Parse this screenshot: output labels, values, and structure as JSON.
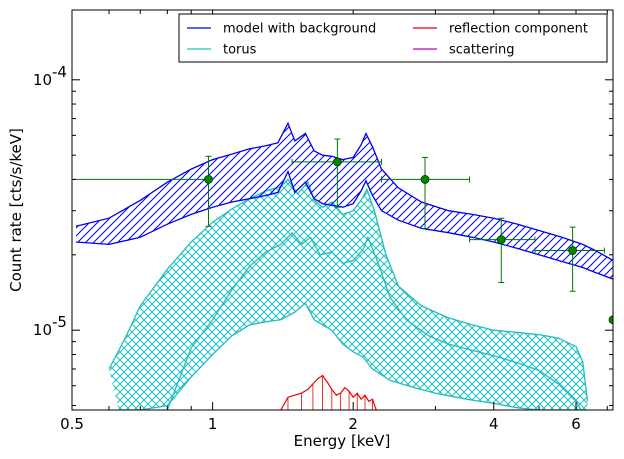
{
  "chart_data": {
    "type": "line",
    "xlabel": "Energy [keV]",
    "ylabel": "Count rate [cts/s/keV]",
    "xscale": "log",
    "yscale": "log",
    "xlim": [
      0.5,
      7.2
    ],
    "ylim": [
      4.8e-06,
      0.00019
    ],
    "x_ticks": [
      {
        "value": 0.5,
        "label": "0.5"
      },
      {
        "value": 1,
        "label": "1"
      },
      {
        "value": 2,
        "label": "2"
      },
      {
        "value": 4,
        "label": "4"
      },
      {
        "value": 6,
        "label": "6"
      }
    ],
    "y_ticks": [
      {
        "value": 1e-05,
        "base": "10",
        "exp": "-5"
      },
      {
        "value": 0.0001,
        "base": "10",
        "exp": "-4"
      }
    ],
    "legend": {
      "placement": "top-right",
      "entries": [
        {
          "name": "model with background",
          "color": "#0000ee"
        },
        {
          "name": "reflection component",
          "color": "#ee0000"
        },
        {
          "name": "torus",
          "color": "#1fbfbf"
        },
        {
          "name": "scattering",
          "color": "#bf00bf"
        }
      ]
    },
    "series": [
      {
        "name": "model with background",
        "color": "#0000ee",
        "upper": [
          [
            0.51,
            2.6e-05
          ],
          [
            0.6,
            2.8e-05
          ],
          [
            0.7,
            3.3e-05
          ],
          [
            0.8,
            3.9e-05
          ],
          [
            0.9,
            4.4e-05
          ],
          [
            1.0,
            4.8e-05
          ],
          [
            1.1,
            5.05e-05
          ],
          [
            1.2,
            5.3e-05
          ],
          [
            1.3,
            5.45e-05
          ],
          [
            1.38,
            5.6e-05
          ],
          [
            1.45,
            6.7e-05
          ],
          [
            1.5,
            5.7e-05
          ],
          [
            1.58,
            6.1e-05
          ],
          [
            1.65,
            5.2e-05
          ],
          [
            1.72,
            5e-05
          ],
          [
            1.8,
            4.95e-05
          ],
          [
            1.9,
            4.8e-05
          ],
          [
            2.0,
            4.9e-05
          ],
          [
            2.08,
            5.5e-05
          ],
          [
            2.13,
            6.1e-05
          ],
          [
            2.2,
            5.4e-05
          ],
          [
            2.3,
            4.4e-05
          ],
          [
            2.5,
            3.7e-05
          ],
          [
            2.8,
            3.25e-05
          ],
          [
            3.2,
            3e-05
          ],
          [
            3.6,
            2.9e-05
          ],
          [
            4.0,
            2.8e-05
          ],
          [
            4.5,
            2.65e-05
          ],
          [
            5.0,
            2.5e-05
          ],
          [
            5.6,
            2.35e-05
          ],
          [
            6.2,
            2.2e-05
          ],
          [
            6.6,
            2.08e-05
          ],
          [
            7.2,
            1.9e-05
          ]
        ],
        "lower": [
          [
            0.51,
            2.25e-05
          ],
          [
            0.6,
            2.2e-05
          ],
          [
            0.7,
            2.35e-05
          ],
          [
            0.8,
            2.65e-05
          ],
          [
            0.9,
            2.9e-05
          ],
          [
            1.0,
            3.1e-05
          ],
          [
            1.1,
            3.25e-05
          ],
          [
            1.2,
            3.35e-05
          ],
          [
            1.3,
            3.45e-05
          ],
          [
            1.38,
            3.55e-05
          ],
          [
            1.45,
            4.3e-05
          ],
          [
            1.5,
            3.55e-05
          ],
          [
            1.58,
            3.9e-05
          ],
          [
            1.65,
            3.35e-05
          ],
          [
            1.72,
            3.2e-05
          ],
          [
            1.8,
            3.15e-05
          ],
          [
            1.9,
            3.1e-05
          ],
          [
            2.0,
            3.2e-05
          ],
          [
            2.08,
            3.6e-05
          ],
          [
            2.13,
            3.95e-05
          ],
          [
            2.2,
            3.45e-05
          ],
          [
            2.3,
            3e-05
          ],
          [
            2.5,
            2.75e-05
          ],
          [
            2.8,
            2.55e-05
          ],
          [
            3.2,
            2.45e-05
          ],
          [
            3.6,
            2.35e-05
          ],
          [
            4.0,
            2.25e-05
          ],
          [
            4.5,
            2.12e-05
          ],
          [
            5.0,
            2e-05
          ],
          [
            5.6,
            1.88e-05
          ],
          [
            6.2,
            1.78e-05
          ],
          [
            6.6,
            1.7e-05
          ],
          [
            7.2,
            1.6e-05
          ]
        ]
      },
      {
        "name": "torus",
        "color": "#1fbfbf",
        "upper": [
          [
            0.6,
            7e-06
          ],
          [
            0.65,
            9.3e-06
          ],
          [
            0.7,
            1.25e-05
          ],
          [
            0.8,
            1.75e-05
          ],
          [
            0.9,
            2.25e-05
          ],
          [
            1.0,
            2.7e-05
          ],
          [
            1.1,
            3.05e-05
          ],
          [
            1.2,
            3.35e-05
          ],
          [
            1.3,
            3.6e-05
          ],
          [
            1.4,
            3.75e-05
          ],
          [
            1.45,
            4e-05
          ],
          [
            1.52,
            3.5e-05
          ],
          [
            1.6,
            3.9e-05
          ],
          [
            1.65,
            3.3e-05
          ],
          [
            1.72,
            3.1e-05
          ],
          [
            1.8,
            3.25e-05
          ],
          [
            1.9,
            2.9e-05
          ],
          [
            2.0,
            3e-05
          ],
          [
            2.08,
            3.3e-05
          ],
          [
            2.14,
            3.65e-05
          ],
          [
            2.22,
            3e-05
          ],
          [
            2.35,
            2e-05
          ],
          [
            2.5,
            1.5e-05
          ],
          [
            2.8,
            1.25e-05
          ],
          [
            3.2,
            1.12e-05
          ],
          [
            3.6,
            1.05e-05
          ],
          [
            4.0,
            1e-05
          ],
          [
            4.5,
            9.8e-06
          ],
          [
            5.0,
            9.6e-06
          ],
          [
            5.5,
            9.3e-06
          ],
          [
            6.0,
            8.6e-06
          ],
          [
            6.2,
            7.5e-06
          ],
          [
            6.35,
            5.2e-06
          ]
        ],
        "lower": [
          [
            0.63,
            4.8e-06
          ],
          [
            0.7,
            4.8e-06
          ],
          [
            0.8,
            5e-06
          ],
          [
            0.9,
            6.5e-06
          ],
          [
            1.0,
            8e-06
          ],
          [
            1.1,
            9.5e-06
          ],
          [
            1.2,
            1.05e-05
          ],
          [
            1.3,
            1.08e-05
          ],
          [
            1.4,
            1.1e-05
          ],
          [
            1.5,
            1.18e-05
          ],
          [
            1.58,
            1.28e-05
          ],
          [
            1.65,
            1.1e-05
          ],
          [
            1.72,
            1.05e-05
          ],
          [
            1.8,
            1e-05
          ],
          [
            1.9,
            8.8e-06
          ],
          [
            2.0,
            8.2e-06
          ],
          [
            2.1,
            7.8e-06
          ],
          [
            2.2,
            7e-06
          ],
          [
            2.4,
            6.3e-06
          ],
          [
            2.7,
            5.9e-06
          ],
          [
            3.0,
            5.6e-06
          ],
          [
            3.5,
            5.3e-06
          ],
          [
            4.0,
            5.1e-06
          ],
          [
            4.5,
            4.9e-06
          ],
          [
            5.0,
            4.8e-06
          ],
          [
            6.35,
            4.8e-06
          ]
        ],
        "middle": [
          [
            0.8,
            4.8e-06
          ],
          [
            0.9,
            8.5e-06
          ],
          [
            1.0,
            1.1e-05
          ],
          [
            1.1,
            1.45e-05
          ],
          [
            1.2,
            1.8e-05
          ],
          [
            1.3,
            2.05e-05
          ],
          [
            1.4,
            2.2e-05
          ],
          [
            1.48,
            2.45e-05
          ],
          [
            1.55,
            2.2e-05
          ],
          [
            1.62,
            2.35e-05
          ],
          [
            1.7,
            2e-05
          ],
          [
            1.8,
            2.05e-05
          ],
          [
            1.9,
            1.85e-05
          ],
          [
            2.0,
            1.9e-05
          ],
          [
            2.1,
            2.1e-05
          ],
          [
            2.15,
            2.35e-05
          ],
          [
            2.25,
            1.9e-05
          ],
          [
            2.4,
            1.35e-05
          ],
          [
            2.6,
            1.1e-05
          ],
          [
            2.9,
            9.5e-06
          ],
          [
            3.2,
            8.8e-06
          ],
          [
            3.6,
            8.3e-06
          ],
          [
            4.0,
            7.9e-06
          ],
          [
            4.5,
            7.4e-06
          ],
          [
            5.0,
            6.9e-06
          ],
          [
            5.5,
            6.1e-06
          ],
          [
            6.0,
            5.2e-06
          ],
          [
            6.15,
            4.8e-06
          ]
        ]
      },
      {
        "name": "reflection component",
        "color": "#ee0000",
        "x": [
          1.4,
          1.45,
          1.5,
          1.55,
          1.6,
          1.64,
          1.68,
          1.72,
          1.76,
          1.8,
          1.84,
          1.88,
          1.92,
          1.96,
          2.0,
          2.04,
          2.08,
          2.12,
          2.16,
          2.2,
          2.24
        ],
        "y": [
          4.8e-06,
          5.4e-06,
          5.5e-06,
          5.6e-06,
          5.8e-06,
          6.1e-06,
          6.4e-06,
          6.6e-06,
          6.2e-06,
          5.8e-06,
          5.5e-06,
          5.6e-06,
          5.9e-06,
          5.7e-06,
          5.4e-06,
          5.6e-06,
          5.3e-06,
          5.5e-06,
          5.2e-06,
          5.3e-06,
          4.8e-06
        ]
      },
      {
        "name": "data",
        "type": "scatter",
        "color": "#007700",
        "points": [
          {
            "x": 0.98,
            "y": 4e-05,
            "xerr": [
              0.5,
              0.98
            ],
            "yerr": [
              2.6e-05,
              4.95e-05
            ]
          },
          {
            "x": 1.85,
            "y": 4.7e-05,
            "xerr": [
              1.48,
              2.3
            ],
            "yerr": [
              3.1e-05,
              5.8e-05
            ]
          },
          {
            "x": 2.85,
            "y": 4e-05,
            "xerr": [
              2.3,
              3.55
            ],
            "yerr": [
              2.55e-05,
              4.9e-05
            ]
          },
          {
            "x": 4.15,
            "y": 2.3e-05,
            "xerr": [
              3.55,
              4.9
            ],
            "yerr": [
              1.55e-05,
              2.8e-05
            ]
          },
          {
            "x": 5.9,
            "y": 2.08e-05,
            "xerr": [
              4.9,
              6.9
            ],
            "yerr": [
              1.43e-05,
              2.58e-05
            ]
          },
          {
            "x": 7.2,
            "y": 1.1e-05,
            "xerr": [
              7.2,
              7.2
            ],
            "yerr": [
              1.1e-05,
              1.1e-05
            ]
          }
        ]
      }
    ]
  }
}
